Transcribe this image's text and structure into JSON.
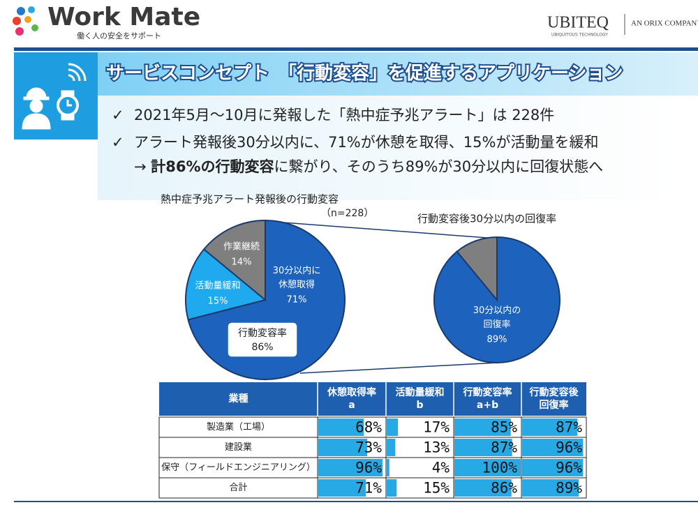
{
  "header": {
    "logo": "Work Mate",
    "tagline": "働く人の安全をサポート",
    "company": "UBITEQ",
    "company_sub": "UBIQUITOUS TECHNOLOGY",
    "company_group": "AN ORIX COMPANY"
  },
  "slide_title": "サービスコンセプト　「行動変容」を促進するアプリケーション",
  "bullets": [
    {
      "mark": "✓",
      "text": "2021年5月～10月に発報した「熱中症予兆アラート」は 228件"
    },
    {
      "mark": "✓",
      "text": "アラート発報後30分以内に、71%が休憩を取得、15%が活動量を緩和",
      "continuation": [
        "→ ",
        "計86%の行動変容",
        "に繋がり、そのうち89%が30分以内に回復状態へ"
      ]
    }
  ],
  "chart_data": [
    {
      "type": "pie",
      "title": "熱中症予兆アラート発報後の行動変容",
      "subtitle": "（n=228）",
      "categories": [
        "30分以内に\n休憩取得",
        "活動量緩和",
        "作業継続"
      ],
      "values": [
        71,
        15,
        14
      ],
      "value_labels": [
        "71%",
        "15%",
        "14%"
      ],
      "colors": [
        "#1d63bd",
        "#1faaf0",
        "#7f7f7f"
      ],
      "annotation": {
        "label": "行動変容率",
        "value": 86,
        "value_label": "86%"
      }
    },
    {
      "type": "pie",
      "title": "行動変容後30分以内の回復率",
      "categories": [
        "30分以内の\n回復率",
        null
      ],
      "values": [
        89,
        11
      ],
      "value_labels": [
        "89%",
        null
      ],
      "colors": [
        "#1d63bd",
        "#7f7f7f"
      ]
    }
  ],
  "table": {
    "headers": [
      "業種",
      "休憩取得率\na",
      "活動量緩和\nb",
      "行動変容率\na+b",
      "行動変容後\n回復率"
    ],
    "rows": [
      {
        "label": "製造業（工場）",
        "values": [
          68,
          17,
          85,
          87
        ],
        "value_labels": [
          "68%",
          "17%",
          "85%",
          "87%"
        ]
      },
      {
        "label": "建設業",
        "values": [
          73,
          13,
          87,
          96
        ],
        "value_labels": [
          "73%",
          "13%",
          "87%",
          "96%"
        ]
      },
      {
        "label": "保守（フィールドエンジニアリング）",
        "values": [
          96,
          4,
          100,
          96
        ],
        "value_labels": [
          "96%",
          "4%",
          "100%",
          "96%"
        ]
      },
      {
        "label": "合計",
        "values": [
          71,
          15,
          86,
          89
        ],
        "value_labels": [
          "71%",
          "15%",
          "86%",
          "89%"
        ]
      }
    ],
    "bar_max": 100,
    "bar_color": "#27a9e6"
  }
}
